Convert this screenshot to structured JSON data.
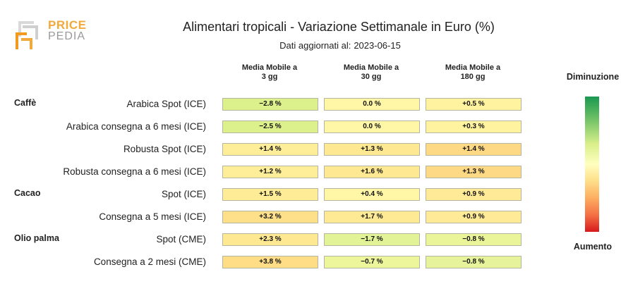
{
  "logo": {
    "line1": "PRICE",
    "line2": "PEDIA"
  },
  "title": "Alimentari tropicali - Variazione Settimanale in Euro (%)",
  "subtitle_label": "Dati aggiornati al:",
  "subtitle_date": "2023-06-15",
  "legend": {
    "top": "Diminuzione",
    "bottom": "Aumento"
  },
  "chart_data": {
    "type": "table",
    "columns": [
      "Media Mobile a\n3 gg",
      "Media Mobile a\n30 gg",
      "Media Mobile a\n180 gg"
    ],
    "groups": [
      {
        "name": "Caffè",
        "rows": [
          {
            "label": "Arabica Spot (ICE)",
            "values": [
              "−2.8 %",
              "0.0 %",
              "+0.5 %"
            ]
          },
          {
            "label": "Arabica consegna a 6 mesi (ICE)",
            "values": [
              "−2.5 %",
              "0.0 %",
              "+0.3 %"
            ]
          },
          {
            "label": "Robusta Spot (ICE)",
            "values": [
              "+1.4 %",
              "+1.3 %",
              "+1.4 %"
            ]
          },
          {
            "label": "Robusta consegna a 6 mesi (ICE)",
            "values": [
              "+1.2 %",
              "+1.6 %",
              "+1.3 %"
            ]
          }
        ]
      },
      {
        "name": "Cacao",
        "rows": [
          {
            "label": "Spot (ICE)",
            "values": [
              "+1.5 %",
              "+0.4 %",
              "+0.9 %"
            ]
          },
          {
            "label": "Consegna a 5 mesi (ICE)",
            "values": [
              "+3.2 %",
              "+1.7 %",
              "+0.9 %"
            ]
          }
        ]
      },
      {
        "name": "Olio palma",
        "rows": [
          {
            "label": "Spot (CME)",
            "values": [
              "+2.3 %",
              "−1.7 %",
              "−0.8 %"
            ]
          },
          {
            "label": "Consegna a 2 mesi (CME)",
            "values": [
              "+3.8 %",
              "−0.7 %",
              "−0.8 %"
            ]
          }
        ]
      }
    ],
    "cell_colors": [
      [
        "#dcf08c",
        "#fff7a6",
        "#fff3a0"
      ],
      [
        "#dcf08c",
        "#fff7a6",
        "#fff3a0"
      ],
      [
        "#ffee99",
        "#fee892",
        "#fed985"
      ],
      [
        "#ffee99",
        "#fee892",
        "#fed985"
      ],
      [
        "#ffec97",
        "#fff7a6",
        "#ffea97"
      ],
      [
        "#fee08b",
        "#feea94",
        "#ffea97"
      ],
      [
        "#fee892",
        "#e2f296",
        "#eaf59a"
      ],
      [
        "#fedd86",
        "#eef69c",
        "#e6f39a"
      ]
    ]
  }
}
